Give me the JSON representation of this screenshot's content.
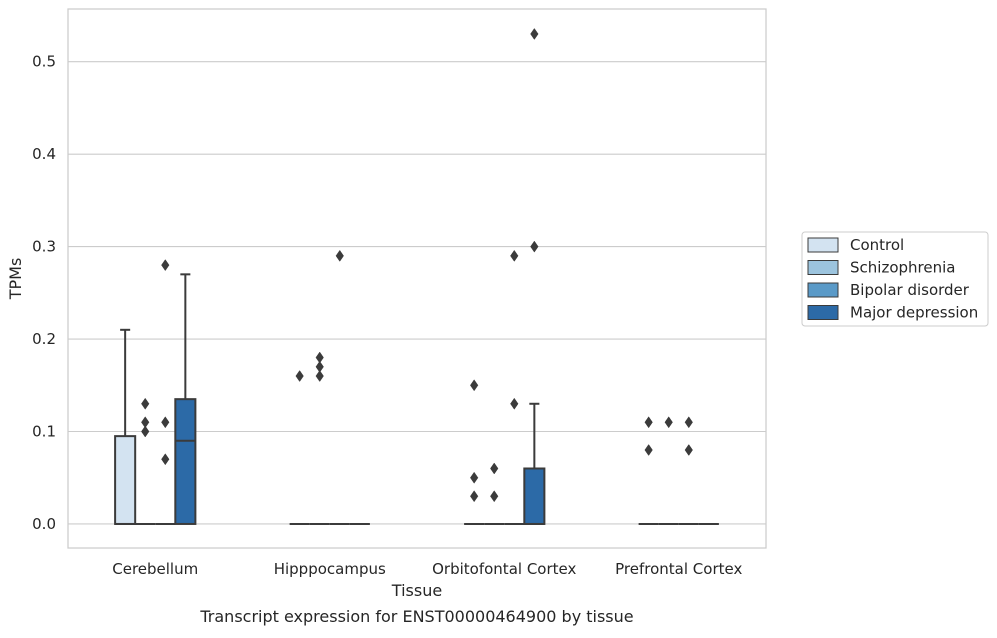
{
  "chart_data": {
    "type": "boxplot",
    "title": "",
    "caption": "Transcript expression for ENST00000464900 by tissue",
    "xlabel": "Tissue",
    "ylabel": "TPMs",
    "ylim": [
      -0.026,
      0.557
    ],
    "yticks": [
      0.0,
      0.1,
      0.2,
      0.3,
      0.4,
      0.5
    ],
    "ytick_labels": [
      "0.0",
      "0.1",
      "0.2",
      "0.3",
      "0.4",
      "0.5"
    ],
    "grid": "horizontal",
    "legend_position": "right",
    "categories": [
      "Cerebellum",
      "Hipppocampus",
      "Orbitofontal Cortex",
      "Prefrontal Cortex"
    ],
    "series": [
      {
        "name": "Control",
        "color": "#d3e3f1",
        "boxes": [
          {
            "q1": 0.0,
            "median": 0.0,
            "q3": 0.095,
            "whisker_low": 0.0,
            "whisker_high": 0.21,
            "outliers": []
          },
          {
            "q1": 0.0,
            "median": 0.0,
            "q3": 0.0,
            "whisker_low": 0.0,
            "whisker_high": 0.0,
            "outliers": [
              0.16
            ]
          },
          {
            "q1": 0.0,
            "median": 0.0,
            "q3": 0.0,
            "whisker_low": 0.0,
            "whisker_high": 0.0,
            "outliers": [
              0.15,
              0.05,
              0.03
            ]
          },
          {
            "q1": 0.0,
            "median": 0.0,
            "q3": 0.0,
            "whisker_low": 0.0,
            "whisker_high": 0.0,
            "outliers": [
              0.11,
              0.08
            ]
          }
        ]
      },
      {
        "name": "Schizophrenia",
        "color": "#9cc4de",
        "boxes": [
          {
            "q1": 0.0,
            "median": 0.0,
            "q3": 0.0,
            "whisker_low": 0.0,
            "whisker_high": 0.0,
            "outliers": [
              0.13,
              0.11,
              0.1
            ]
          },
          {
            "q1": 0.0,
            "median": 0.0,
            "q3": 0.0,
            "whisker_low": 0.0,
            "whisker_high": 0.0,
            "outliers": [
              0.18,
              0.17,
              0.16
            ]
          },
          {
            "q1": 0.0,
            "median": 0.0,
            "q3": 0.0,
            "whisker_low": 0.0,
            "whisker_high": 0.0,
            "outliers": [
              0.06,
              0.03
            ]
          },
          {
            "q1": 0.0,
            "median": 0.0,
            "q3": 0.0,
            "whisker_low": 0.0,
            "whisker_high": 0.0,
            "outliers": [
              0.11
            ]
          }
        ]
      },
      {
        "name": "Bipolar disorder",
        "color": "#5a9ac8",
        "boxes": [
          {
            "q1": 0.0,
            "median": 0.0,
            "q3": 0.0,
            "whisker_low": 0.0,
            "whisker_high": 0.0,
            "outliers": [
              0.28,
              0.11,
              0.07
            ]
          },
          {
            "q1": 0.0,
            "median": 0.0,
            "q3": 0.0,
            "whisker_low": 0.0,
            "whisker_high": 0.0,
            "outliers": [
              0.29
            ]
          },
          {
            "q1": 0.0,
            "median": 0.0,
            "q3": 0.0,
            "whisker_low": 0.0,
            "whisker_high": 0.0,
            "outliers": [
              0.29,
              0.13
            ]
          },
          {
            "q1": 0.0,
            "median": 0.0,
            "q3": 0.0,
            "whisker_low": 0.0,
            "whisker_high": 0.0,
            "outliers": [
              0.11,
              0.08
            ]
          }
        ]
      },
      {
        "name": "Major depression",
        "color": "#2c6aa7",
        "boxes": [
          {
            "q1": 0.0,
            "median": 0.09,
            "q3": 0.135,
            "whisker_low": 0.0,
            "whisker_high": 0.27,
            "outliers": []
          },
          {
            "q1": 0.0,
            "median": 0.0,
            "q3": 0.0,
            "whisker_low": 0.0,
            "whisker_high": 0.0,
            "outliers": []
          },
          {
            "q1": 0.0,
            "median": 0.0,
            "q3": 0.06,
            "whisker_low": 0.0,
            "whisker_high": 0.13,
            "outliers": [
              0.53,
              0.3
            ]
          },
          {
            "q1": 0.0,
            "median": 0.0,
            "q3": 0.0,
            "whisker_low": 0.0,
            "whisker_high": 0.0,
            "outliers": []
          }
        ]
      }
    ]
  }
}
